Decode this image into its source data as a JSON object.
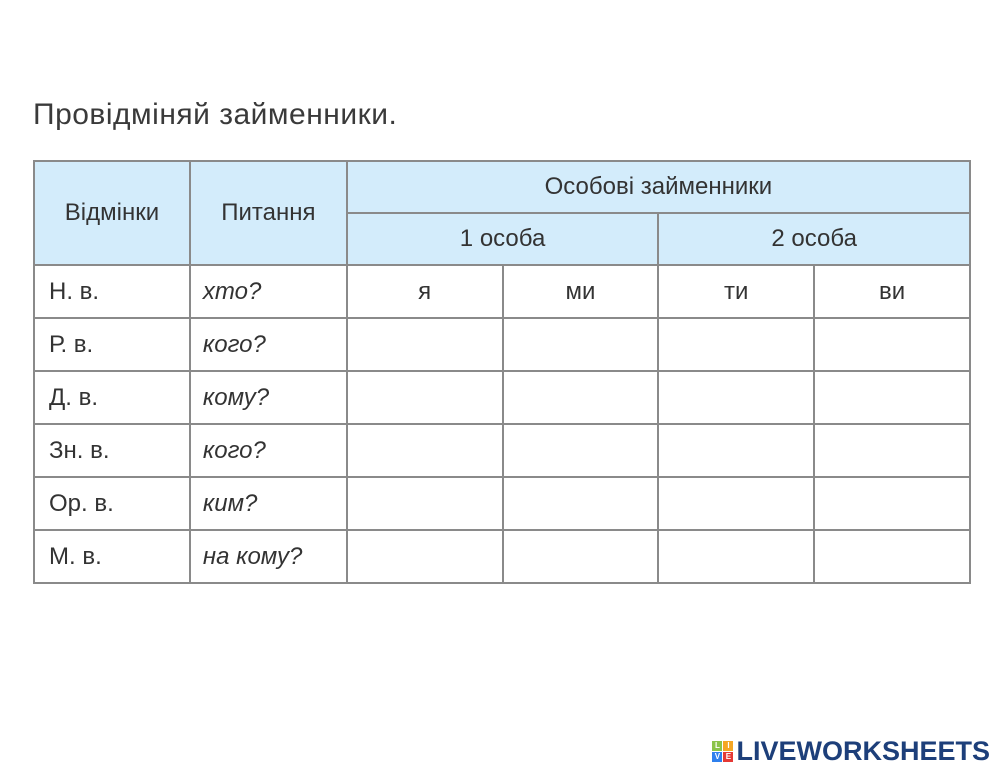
{
  "title": "Провідміняй займенники.",
  "table": {
    "headers": {
      "cases": "Відмінки",
      "questions": "Питання",
      "group": "Особові займенники",
      "person1": "1 особа",
      "person2": "2 особа"
    },
    "rows": [
      {
        "case": "Н. в.",
        "question": "хто?",
        "cells": [
          "я",
          "ми",
          "ти",
          "ви"
        ]
      },
      {
        "case": "Р. в.",
        "question": "кого?",
        "cells": [
          "",
          "",
          "",
          ""
        ]
      },
      {
        "case": "Д. в.",
        "question": "кому?",
        "cells": [
          "",
          "",
          "",
          ""
        ]
      },
      {
        "case": "Зн. в.",
        "question": "кого?",
        "cells": [
          "",
          "",
          "",
          ""
        ]
      },
      {
        "case": "Ор. в.",
        "question": "ким?",
        "cells": [
          "",
          "",
          "",
          ""
        ]
      },
      {
        "case": "М. в.",
        "question": "на кому?",
        "cells": [
          "",
          "",
          "",
          ""
        ]
      }
    ]
  },
  "colors": {
    "header_bg": "#d3ecfb",
    "border": "#8a8a8a",
    "logo": "#1d3f7a"
  },
  "logo": {
    "text": "LIVEWORKSHEETS",
    "blocks": [
      "L",
      "I",
      "V",
      "E"
    ]
  }
}
